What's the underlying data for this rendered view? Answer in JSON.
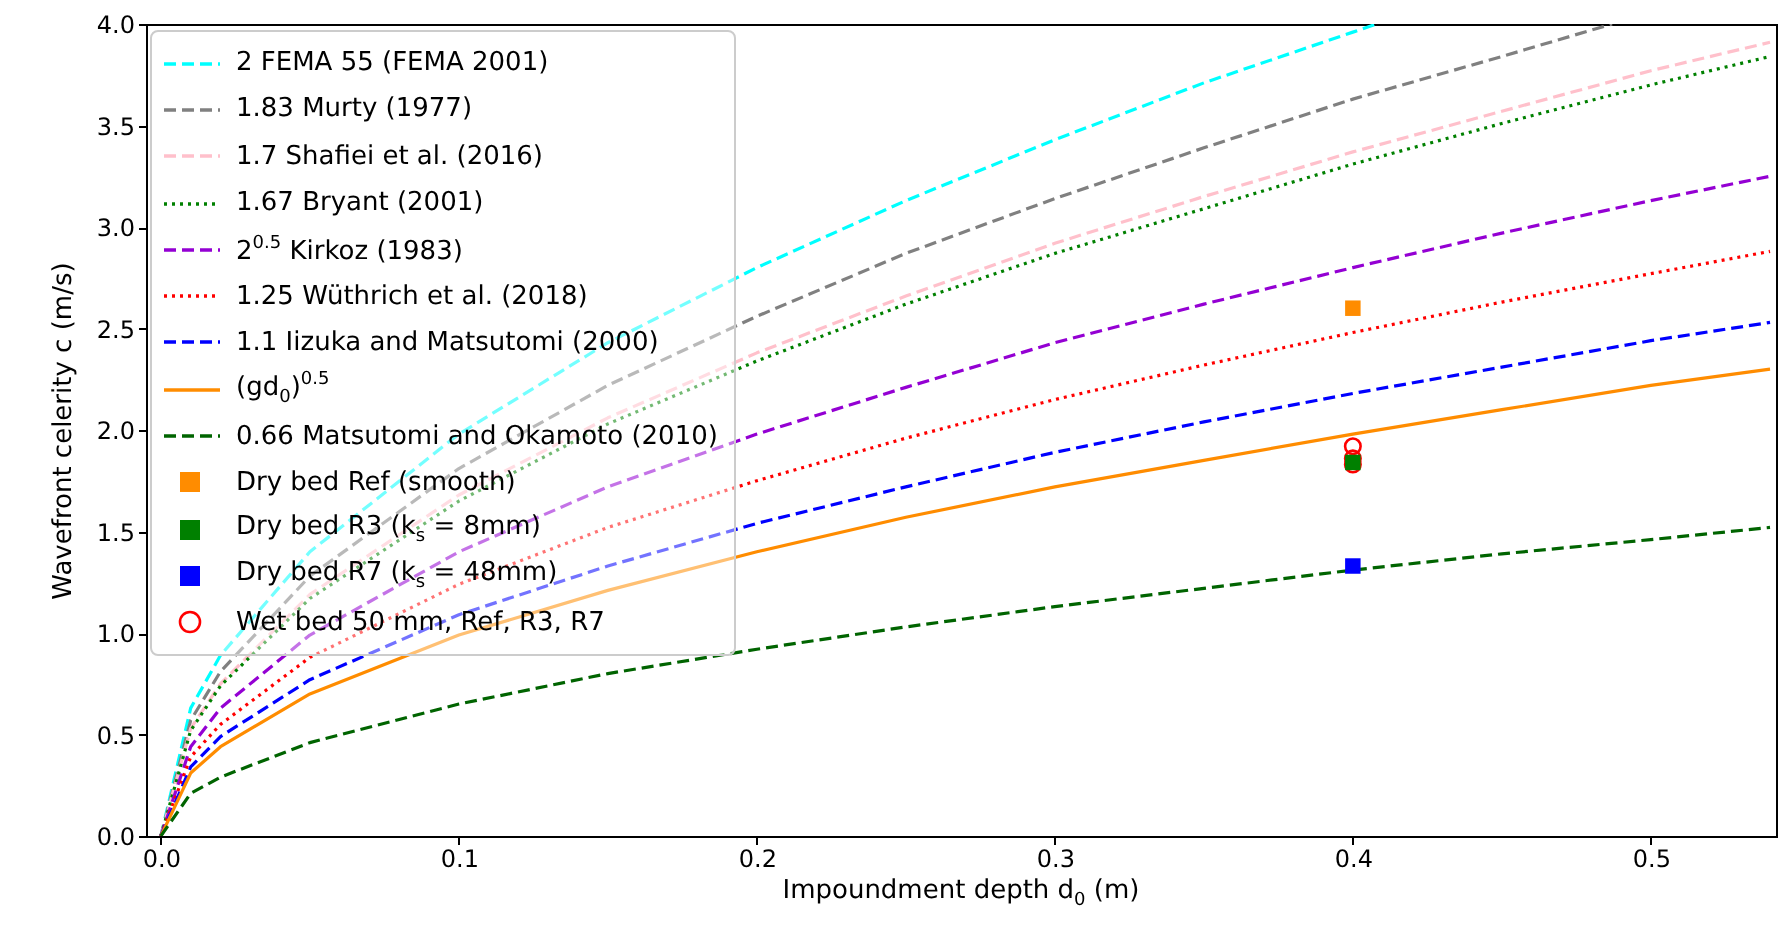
{
  "chart_data": {
    "type": "line",
    "xlabel": "Impoundment depth d$_{0}$ (m)",
    "ylabel": "Wavefront celerity c (m/s)",
    "x": [
      0,
      0.01,
      0.02,
      0.05,
      0.1,
      0.15,
      0.2,
      0.25,
      0.3,
      0.35,
      0.4,
      0.45,
      0.5,
      0.54
    ],
    "series": [
      {
        "name": "2 FEMA 55 (FEMA 2001)",
        "color": "#00ffff",
        "line_style": "dashed",
        "x": [
          0,
          0.01,
          0.02,
          0.05,
          0.1,
          0.15,
          0.2,
          0.25,
          0.3,
          0.35,
          0.4,
          0.408
        ],
        "values": [
          0,
          0.63,
          0.89,
          1.4,
          1.98,
          2.43,
          2.8,
          3.13,
          3.43,
          3.71,
          3.96,
          4.0
        ]
      },
      {
        "name": "1.83 Murty (1977)",
        "color": "#808080",
        "line_style": "dashed",
        "x": [
          0,
          0.01,
          0.02,
          0.05,
          0.1,
          0.15,
          0.2,
          0.25,
          0.3,
          0.35,
          0.4,
          0.45,
          0.487
        ],
        "values": [
          0,
          0.57,
          0.81,
          1.28,
          1.81,
          2.22,
          2.56,
          2.87,
          3.14,
          3.39,
          3.63,
          3.84,
          4.0
        ]
      },
      {
        "name": "1.7 Shafiei et al. (2016)",
        "color": "#ffc0cb",
        "line_style": "dashed",
        "values": [
          0,
          0.53,
          0.75,
          1.19,
          1.68,
          2.06,
          2.38,
          2.66,
          2.92,
          3.15,
          3.37,
          3.57,
          3.77,
          3.91
        ]
      },
      {
        "name": "1.67 Bryant (2001)",
        "color": "#008000",
        "line_style": "dotted",
        "values": [
          0,
          0.52,
          0.74,
          1.17,
          1.65,
          2.03,
          2.34,
          2.62,
          2.87,
          3.09,
          3.31,
          3.51,
          3.7,
          3.84
        ]
      },
      {
        "name": "2$^{0.5}$ Kirkoz (1983)",
        "color": "#9400d3",
        "line_style": "dashed",
        "values": [
          0,
          0.44,
          0.63,
          0.99,
          1.4,
          1.72,
          1.98,
          2.21,
          2.43,
          2.62,
          2.8,
          2.97,
          3.13,
          3.25
        ]
      },
      {
        "name": "1.25 Wüthrich et al. (2018)",
        "color": "#ff0000",
        "line_style": "dotted",
        "values": [
          0,
          0.39,
          0.55,
          0.88,
          1.24,
          1.52,
          1.75,
          1.96,
          2.15,
          2.32,
          2.48,
          2.63,
          2.77,
          2.88
        ]
      },
      {
        "name": "1.1 Iizuka and Matsutomi (2000)",
        "color": "#0000ff",
        "line_style": "dashed",
        "values": [
          0,
          0.34,
          0.49,
          0.77,
          1.09,
          1.33,
          1.54,
          1.72,
          1.89,
          2.04,
          2.18,
          2.31,
          2.44,
          2.53
        ]
      },
      {
        "name": "(gd$_{0}$)$^{0.5}$",
        "color": "#ff8c00",
        "line_style": "solid",
        "values": [
          0,
          0.31,
          0.44,
          0.7,
          0.99,
          1.21,
          1.4,
          1.57,
          1.72,
          1.85,
          1.98,
          2.1,
          2.22,
          2.3
        ]
      },
      {
        "name": "0.66 Matsutomi and Okamoto (2010)",
        "color": "#006400",
        "line_style": "dashed",
        "values": [
          0,
          0.21,
          0.29,
          0.46,
          0.65,
          0.8,
          0.92,
          1.03,
          1.13,
          1.22,
          1.31,
          1.39,
          1.46,
          1.52
        ]
      },
      {
        "name": "Dry bed Ref (smooth)",
        "type": "scatter",
        "marker": "square",
        "color": "#ff8c00",
        "x": [
          0.4
        ],
        "values": [
          2.6
        ]
      },
      {
        "name": "Dry bed R3 (k$_{s}$ = 8mm)",
        "type": "scatter",
        "marker": "square",
        "color": "#008000",
        "x": [
          0.4
        ],
        "values": [
          1.84
        ]
      },
      {
        "name": "Dry bed R7 (k$_{s}$ = 48mm)",
        "type": "scatter",
        "marker": "square",
        "color": "#0000ff",
        "x": [
          0.4
        ],
        "values": [
          1.33
        ]
      },
      {
        "name": "Wet bed 50 mm, Ref, R3, R7",
        "type": "scatter",
        "marker": "circle",
        "color": "#ff0000",
        "x": [
          0.4,
          0.4,
          0.4
        ],
        "values": [
          1.92,
          1.86,
          1.83
        ]
      }
    ],
    "xlim": [
      -0.005,
      0.542
    ],
    "xticks": [
      {
        "value": 0,
        "label": "0.0"
      },
      0.1,
      0.2,
      0.3,
      0.4,
      0.5
    ],
    "ylim": [
      0,
      4
    ],
    "yticks": [
      {
        "value": 0,
        "label": "0.0"
      },
      0.5,
      {
        "value": 1,
        "label": "1.0"
      },
      1.5,
      {
        "value": 2,
        "label": "2.0"
      },
      2.5,
      {
        "value": 3,
        "label": "3.0"
      },
      3.5,
      {
        "value": 4,
        "label": "4.0"
      }
    ],
    "grid": false,
    "legend": "top left"
  }
}
